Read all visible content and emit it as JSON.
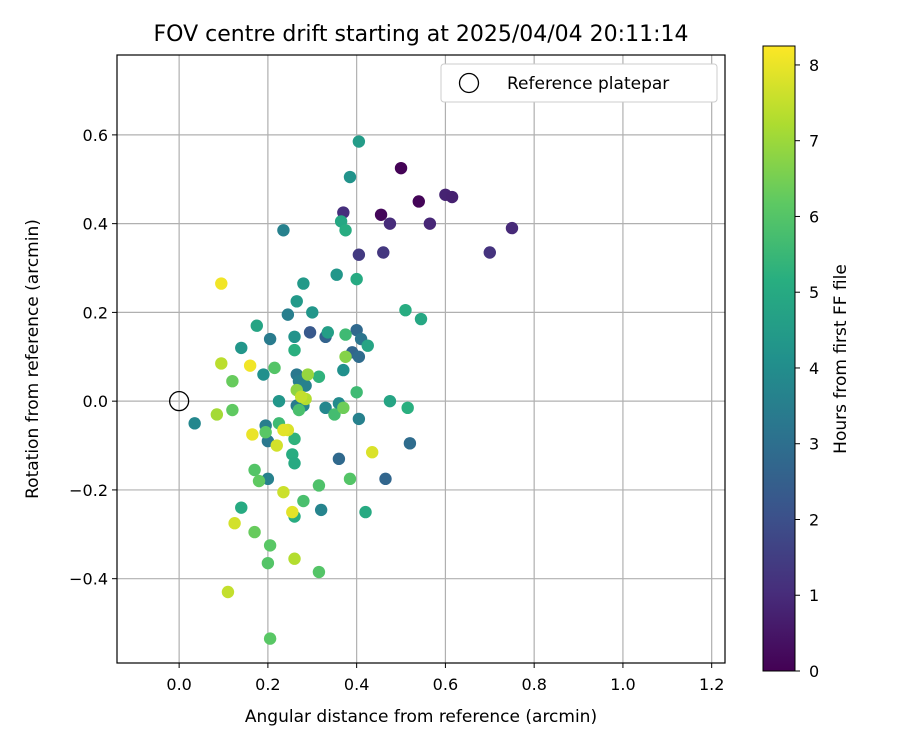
{
  "chart_data": {
    "type": "scatter",
    "title": "FOV centre drift starting at 2025/04/04 20:11:14",
    "xlabel": "Angular distance from reference (arcmin)",
    "ylabel": "Rotation from reference (arcmin)",
    "xlim": [
      -0.14,
      1.23
    ],
    "ylim": [
      -0.59,
      0.78
    ],
    "xticks": [
      0.0,
      0.2,
      0.4,
      0.6,
      0.8,
      1.0,
      1.2
    ],
    "yticks": [
      -0.4,
      -0.2,
      0.0,
      0.2,
      0.4,
      0.6
    ],
    "xtick_labels": [
      "0.0",
      "0.2",
      "0.4",
      "0.6",
      "0.8",
      "1.0",
      "1.2"
    ],
    "ytick_labels": [
      "−0.4",
      "−0.2",
      "0.0",
      "0.2",
      "0.4",
      "0.6"
    ],
    "grid": true,
    "legend": {
      "position": "top-right",
      "entries": [
        "Reference platepar"
      ]
    },
    "colorbar": {
      "label": "Hours from first FF file",
      "colormap": "viridis",
      "range": [
        0,
        8.25
      ],
      "ticks": [
        0,
        1,
        2,
        3,
        4,
        5,
        6,
        7,
        8
      ],
      "tick_labels": [
        "0",
        "1",
        "2",
        "3",
        "4",
        "5",
        "6",
        "7",
        "8"
      ]
    },
    "reference_point": {
      "name": "Reference platepar",
      "x": 0.0,
      "y": 0.0
    },
    "points": [
      {
        "x": 0.5,
        "y": 0.525,
        "c": 0.05
      },
      {
        "x": 0.54,
        "y": 0.45,
        "c": 0.1
      },
      {
        "x": 0.455,
        "y": 0.42,
        "c": 0.15
      },
      {
        "x": 0.6,
        "y": 0.465,
        "c": 0.8
      },
      {
        "x": 0.615,
        "y": 0.46,
        "c": 0.75
      },
      {
        "x": 0.565,
        "y": 0.4,
        "c": 0.9
      },
      {
        "x": 0.75,
        "y": 0.39,
        "c": 0.95
      },
      {
        "x": 0.7,
        "y": 0.335,
        "c": 1.2
      },
      {
        "x": 0.475,
        "y": 0.4,
        "c": 1.0
      },
      {
        "x": 0.46,
        "y": 0.335,
        "c": 1.3
      },
      {
        "x": 0.37,
        "y": 0.425,
        "c": 1.1
      },
      {
        "x": 0.405,
        "y": 0.33,
        "c": 1.4
      },
      {
        "x": 0.295,
        "y": 0.155,
        "c": 2.3
      },
      {
        "x": 0.33,
        "y": 0.145,
        "c": 2.6
      },
      {
        "x": 0.4,
        "y": 0.16,
        "c": 2.8
      },
      {
        "x": 0.39,
        "y": 0.11,
        "c": 2.7
      },
      {
        "x": 0.405,
        "y": 0.1,
        "c": 2.9
      },
      {
        "x": 0.465,
        "y": -0.175,
        "c": 2.7
      },
      {
        "x": 0.52,
        "y": -0.095,
        "c": 2.9
      },
      {
        "x": 0.36,
        "y": -0.13,
        "c": 2.8
      },
      {
        "x": 0.41,
        "y": 0.14,
        "c": 3.2
      },
      {
        "x": 0.235,
        "y": 0.385,
        "c": 3.6
      },
      {
        "x": 0.245,
        "y": 0.195,
        "c": 3.5
      },
      {
        "x": 0.205,
        "y": 0.14,
        "c": 3.4
      },
      {
        "x": 0.265,
        "y": 0.06,
        "c": 3.3
      },
      {
        "x": 0.27,
        "y": 0.045,
        "c": 3.5
      },
      {
        "x": 0.285,
        "y": 0.035,
        "c": 3.6
      },
      {
        "x": 0.265,
        "y": -0.01,
        "c": 3.4
      },
      {
        "x": 0.28,
        "y": -0.01,
        "c": 3.7
      },
      {
        "x": 0.2,
        "y": -0.09,
        "c": 3.3
      },
      {
        "x": 0.195,
        "y": -0.055,
        "c": 3.5
      },
      {
        "x": 0.2,
        "y": -0.175,
        "c": 3.6
      },
      {
        "x": 0.32,
        "y": -0.245,
        "c": 3.7
      },
      {
        "x": 0.33,
        "y": -0.015,
        "c": 3.8
      },
      {
        "x": 0.36,
        "y": -0.005,
        "c": 3.9
      },
      {
        "x": 0.405,
        "y": -0.04,
        "c": 3.6
      },
      {
        "x": 0.035,
        "y": -0.05,
        "c": 3.8
      },
      {
        "x": 0.19,
        "y": 0.06,
        "c": 4.1
      },
      {
        "x": 0.14,
        "y": 0.12,
        "c": 4.3
      },
      {
        "x": 0.26,
        "y": 0.145,
        "c": 4.2
      },
      {
        "x": 0.3,
        "y": 0.2,
        "c": 4.3
      },
      {
        "x": 0.265,
        "y": 0.225,
        "c": 4.4
      },
      {
        "x": 0.28,
        "y": 0.265,
        "c": 4.4
      },
      {
        "x": 0.355,
        "y": 0.285,
        "c": 4.3
      },
      {
        "x": 0.385,
        "y": 0.505,
        "c": 4.2
      },
      {
        "x": 0.405,
        "y": 0.585,
        "c": 4.5
      },
      {
        "x": 0.37,
        "y": 0.07,
        "c": 4.1
      },
      {
        "x": 0.225,
        "y": 0.0,
        "c": 4.3
      },
      {
        "x": 0.335,
        "y": 0.155,
        "c": 4.6
      },
      {
        "x": 0.365,
        "y": 0.405,
        "c": 4.9
      },
      {
        "x": 0.375,
        "y": 0.385,
        "c": 5.1
      },
      {
        "x": 0.4,
        "y": 0.275,
        "c": 5.0
      },
      {
        "x": 0.425,
        "y": 0.125,
        "c": 4.8
      },
      {
        "x": 0.51,
        "y": 0.205,
        "c": 5.1
      },
      {
        "x": 0.545,
        "y": 0.185,
        "c": 4.9
      },
      {
        "x": 0.475,
        "y": 0.0,
        "c": 4.8
      },
      {
        "x": 0.515,
        "y": -0.015,
        "c": 5.2
      },
      {
        "x": 0.42,
        "y": -0.25,
        "c": 5.0
      },
      {
        "x": 0.175,
        "y": 0.17,
        "c": 4.8
      },
      {
        "x": 0.26,
        "y": 0.115,
        "c": 5.2
      },
      {
        "x": 0.14,
        "y": -0.24,
        "c": 5.0
      },
      {
        "x": 0.26,
        "y": -0.26,
        "c": 5.1
      },
      {
        "x": 0.255,
        "y": -0.12,
        "c": 5.1
      },
      {
        "x": 0.26,
        "y": -0.14,
        "c": 5.0
      },
      {
        "x": 0.315,
        "y": 0.055,
        "c": 5.3
      },
      {
        "x": 0.26,
        "y": -0.085,
        "c": 5.3
      },
      {
        "x": 0.375,
        "y": 0.15,
        "c": 5.6
      },
      {
        "x": 0.4,
        "y": 0.02,
        "c": 5.6
      },
      {
        "x": 0.35,
        "y": -0.03,
        "c": 5.7
      },
      {
        "x": 0.225,
        "y": -0.05,
        "c": 5.6
      },
      {
        "x": 0.28,
        "y": -0.225,
        "c": 5.8
      },
      {
        "x": 0.315,
        "y": -0.19,
        "c": 5.9
      },
      {
        "x": 0.385,
        "y": -0.175,
        "c": 6.0
      },
      {
        "x": 0.27,
        "y": -0.02,
        "c": 5.8
      },
      {
        "x": 0.215,
        "y": 0.075,
        "c": 6.0
      },
      {
        "x": 0.17,
        "y": -0.155,
        "c": 6.0
      },
      {
        "x": 0.18,
        "y": -0.18,
        "c": 6.2
      },
      {
        "x": 0.205,
        "y": -0.325,
        "c": 6.1
      },
      {
        "x": 0.2,
        "y": -0.365,
        "c": 6.0
      },
      {
        "x": 0.315,
        "y": -0.385,
        "c": 6.0
      },
      {
        "x": 0.205,
        "y": -0.535,
        "c": 6.1
      },
      {
        "x": 0.17,
        "y": -0.295,
        "c": 6.3
      },
      {
        "x": 0.12,
        "y": 0.045,
        "c": 6.3
      },
      {
        "x": 0.12,
        "y": -0.02,
        "c": 6.2
      },
      {
        "x": 0.195,
        "y": -0.07,
        "c": 6.1
      },
      {
        "x": 0.37,
        "y": -0.015,
        "c": 6.4
      },
      {
        "x": 0.375,
        "y": 0.1,
        "c": 6.7
      },
      {
        "x": 0.265,
        "y": 0.025,
        "c": 6.8
      },
      {
        "x": 0.29,
        "y": 0.06,
        "c": 6.9
      },
      {
        "x": 0.26,
        "y": -0.355,
        "c": 7.3
      },
      {
        "x": 0.085,
        "y": -0.03,
        "c": 7.1
      },
      {
        "x": 0.095,
        "y": 0.085,
        "c": 7.4
      },
      {
        "x": 0.285,
        "y": 0.005,
        "c": 7.3
      },
      {
        "x": 0.275,
        "y": 0.01,
        "c": 7.5
      },
      {
        "x": 0.235,
        "y": -0.205,
        "c": 7.6
      },
      {
        "x": 0.22,
        "y": -0.1,
        "c": 7.7
      },
      {
        "x": 0.435,
        "y": -0.115,
        "c": 7.8
      },
      {
        "x": 0.125,
        "y": -0.275,
        "c": 7.7
      },
      {
        "x": 0.11,
        "y": -0.43,
        "c": 7.5
      },
      {
        "x": 0.255,
        "y": -0.25,
        "c": 7.9
      },
      {
        "x": 0.245,
        "y": -0.065,
        "c": 7.8
      },
      {
        "x": 0.235,
        "y": -0.065,
        "c": 7.9
      },
      {
        "x": 0.165,
        "y": -0.075,
        "c": 8.0
      },
      {
        "x": 0.16,
        "y": 0.08,
        "c": 8.1
      },
      {
        "x": 0.095,
        "y": 0.265,
        "c": 8.1
      }
    ]
  }
}
